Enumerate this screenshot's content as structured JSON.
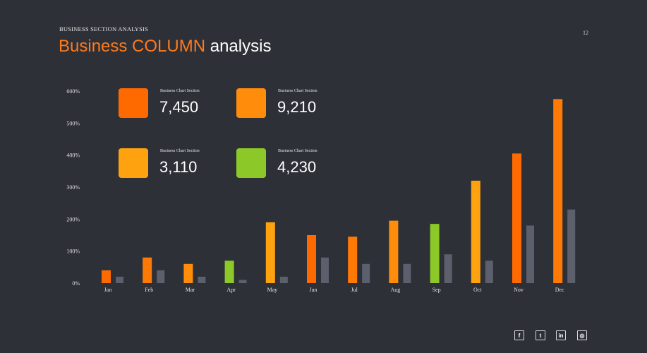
{
  "header": {
    "kicker": "BUSINESS SECTION ANALYSIS",
    "page_number": "12",
    "title_accent": "Business COLUMN",
    "title_rest": "analysis"
  },
  "colors": {
    "background": "#2e3038",
    "orange_dark": "#ff6a00",
    "orange": "#ff8c0a",
    "orange_light": "#ffa20f",
    "green": "#8cc928",
    "gray_bar": "#5c5f6c"
  },
  "stats": [
    {
      "caption": "Business Chart Section",
      "value": "7,450",
      "color": "#ff6a00"
    },
    {
      "caption": "Business Chart Section",
      "value": "9,210",
      "color": "#ff8c0a"
    },
    {
      "caption": "Business Chart Section",
      "value": "3,110",
      "color": "#ffa20f"
    },
    {
      "caption": "Business Chart Section",
      "value": "4,230",
      "color": "#8cc928"
    }
  ],
  "chart_data": {
    "type": "bar",
    "categories": [
      "Jan",
      "Feb",
      "Mar",
      "Apr",
      "May",
      "Jun",
      "Jul",
      "Aug",
      "Sep",
      "Oct",
      "Nov",
      "Dec"
    ],
    "series": [
      {
        "values": [
          40,
          80,
          60,
          70,
          190,
          150,
          145,
          195,
          185,
          320,
          405,
          575
        ],
        "colors": [
          "#ff6a00",
          "#ff7a05",
          "#ff8c0a",
          "#8cc928",
          "#ffa20f",
          "#ff6a00",
          "#ff7a05",
          "#ff8c0a",
          "#8cc928",
          "#ffa20f",
          "#ff6a00",
          "#ff7a05"
        ]
      },
      {
        "values": [
          20,
          40,
          20,
          10,
          20,
          80,
          60,
          60,
          90,
          70,
          180,
          230
        ],
        "color": "#5c5f6c"
      }
    ],
    "ylim": [
      0,
      600
    ],
    "yticks": [
      "0%",
      "100%",
      "200%",
      "300%",
      "400%",
      "500%",
      "600%"
    ],
    "grid": false,
    "legend": "none"
  },
  "social": [
    {
      "icon": "facebook-icon",
      "glyph": "f"
    },
    {
      "icon": "twitter-icon",
      "glyph": "t"
    },
    {
      "icon": "linkedin-icon",
      "glyph": "in"
    },
    {
      "icon": "instagram-icon",
      "glyph": "◎"
    }
  ]
}
